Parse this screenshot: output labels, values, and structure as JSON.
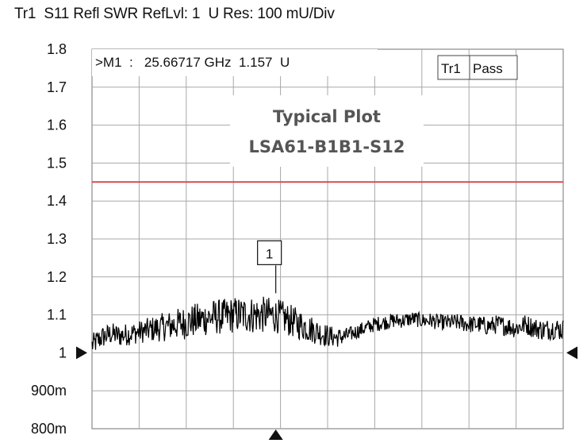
{
  "header": {
    "text": "Tr1  S11 Refl SWR RefLvl: 1  U Res: 100 mU/Div"
  },
  "chart_data": {
    "type": "line",
    "title": "Tr1  S11 Refl SWR RefLvl: 1  U Res: 100 mU/Div",
    "ylim": [
      0.8,
      1.8
    ],
    "ytick_labels": [
      "1.8",
      "1.7",
      "1.6",
      "1.5",
      "1.4",
      "1.3",
      "1.2",
      "1.1",
      "1",
      "900m",
      "800m"
    ],
    "ytick_values": [
      1.8,
      1.7,
      1.6,
      1.5,
      1.4,
      1.3,
      1.2,
      1.1,
      1.0,
      0.9,
      0.8
    ],
    "grid": true,
    "x_divisions": 10,
    "limit_line": {
      "value": 1.45,
      "color": "#d94c4c"
    },
    "reference_level": 1.0,
    "marker": {
      "label": "1",
      "readout": ">M1  :   25.66717 GHz  1.157  U",
      "x_fraction": 0.39,
      "value": 1.157
    },
    "status": {
      "trace": "Tr1",
      "result": "Pass"
    },
    "watermark": {
      "line1": "Typical Plot",
      "line2": "LSA61-B1B1-S12"
    },
    "series": [
      {
        "color": "#000000",
        "points": [
          [
            0.0,
            1.02
          ],
          [
            0.02,
            1.04
          ],
          [
            0.04,
            1.05
          ],
          [
            0.06,
            1.045
          ],
          [
            0.08,
            1.05
          ],
          [
            0.1,
            1.055
          ],
          [
            0.12,
            1.06
          ],
          [
            0.14,
            1.065
          ],
          [
            0.16,
            1.07
          ],
          [
            0.18,
            1.075
          ],
          [
            0.2,
            1.08
          ],
          [
            0.22,
            1.085
          ],
          [
            0.24,
            1.09
          ],
          [
            0.26,
            1.095
          ],
          [
            0.28,
            1.095
          ],
          [
            0.3,
            1.1
          ],
          [
            0.32,
            1.1
          ],
          [
            0.34,
            1.1
          ],
          [
            0.36,
            1.1
          ],
          [
            0.38,
            1.1
          ],
          [
            0.4,
            1.095
          ],
          [
            0.42,
            1.085
          ],
          [
            0.44,
            1.075
          ],
          [
            0.46,
            1.065
          ],
          [
            0.48,
            1.055
          ],
          [
            0.5,
            1.045
          ],
          [
            0.52,
            1.04
          ],
          [
            0.54,
            1.045
          ],
          [
            0.56,
            1.055
          ],
          [
            0.58,
            1.065
          ],
          [
            0.6,
            1.075
          ],
          [
            0.62,
            1.08
          ],
          [
            0.64,
            1.085
          ],
          [
            0.66,
            1.085
          ],
          [
            0.68,
            1.09
          ],
          [
            0.7,
            1.085
          ],
          [
            0.72,
            1.085
          ],
          [
            0.74,
            1.08
          ],
          [
            0.76,
            1.08
          ],
          [
            0.78,
            1.08
          ],
          [
            0.8,
            1.075
          ],
          [
            0.82,
            1.075
          ],
          [
            0.84,
            1.07
          ],
          [
            0.86,
            1.075
          ],
          [
            0.88,
            1.07
          ],
          [
            0.9,
            1.065
          ],
          [
            0.92,
            1.075
          ],
          [
            0.94,
            1.065
          ],
          [
            0.96,
            1.06
          ],
          [
            0.98,
            1.065
          ],
          [
            1.0,
            1.06
          ]
        ],
        "noise": [
          [
            0.0,
            0.03
          ],
          [
            0.1,
            0.03
          ],
          [
            0.2,
            0.045
          ],
          [
            0.35,
            0.05
          ],
          [
            0.45,
            0.04
          ],
          [
            0.55,
            0.02
          ],
          [
            0.7,
            0.02
          ],
          [
            0.85,
            0.025
          ],
          [
            1.0,
            0.03
          ]
        ]
      }
    ]
  }
}
